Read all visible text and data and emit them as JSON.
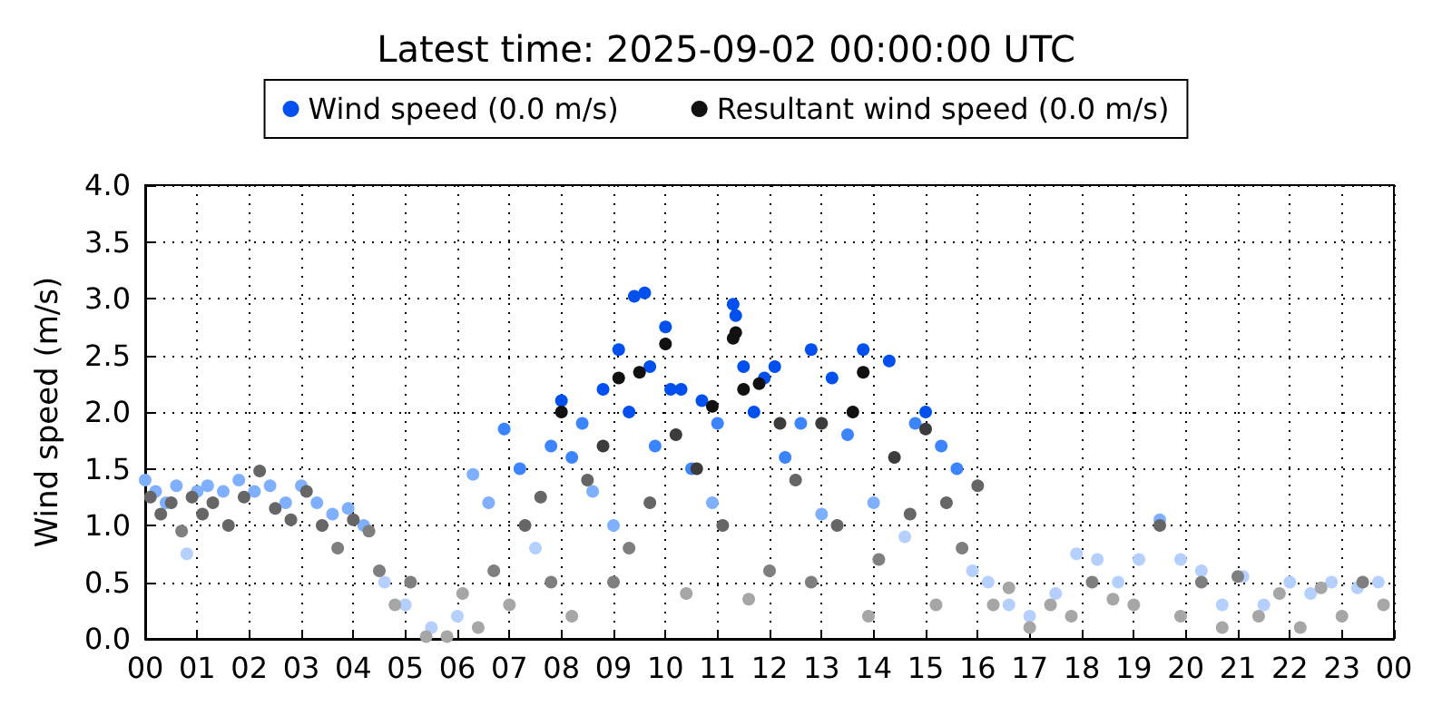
{
  "chart_data": {
    "type": "scatter",
    "title": "Latest time: 2025-09-02 00:00:00 UTC",
    "ylabel": "Wind speed (m/s)",
    "xlim": [
      0,
      24
    ],
    "xticks": [
      {
        "value": 0,
        "label": "00"
      },
      {
        "value": 1,
        "label": "01"
      },
      {
        "value": 2,
        "label": "02"
      },
      {
        "value": 3,
        "label": "03"
      },
      {
        "value": 4,
        "label": "04"
      },
      {
        "value": 5,
        "label": "05"
      },
      {
        "value": 6,
        "label": "06"
      },
      {
        "value": 7,
        "label": "07"
      },
      {
        "value": 8,
        "label": "08"
      },
      {
        "value": 9,
        "label": "09"
      },
      {
        "value": 10,
        "label": "10"
      },
      {
        "value": 11,
        "label": "11"
      },
      {
        "value": 12,
        "label": "12"
      },
      {
        "value": 13,
        "label": "13"
      },
      {
        "value": 14,
        "label": "14"
      },
      {
        "value": 15,
        "label": "15"
      },
      {
        "value": 16,
        "label": "16"
      },
      {
        "value": 17,
        "label": "17"
      },
      {
        "value": 18,
        "label": "18"
      },
      {
        "value": 19,
        "label": "19"
      },
      {
        "value": 20,
        "label": "20"
      },
      {
        "value": 21,
        "label": "21"
      },
      {
        "value": 22,
        "label": "22"
      },
      {
        "value": 23,
        "label": "23"
      },
      {
        "value": 24,
        "label": "00"
      }
    ],
    "ylim": [
      0,
      4
    ],
    "yticks": [
      {
        "value": 0,
        "label": "0.0"
      },
      {
        "value": 0.5,
        "label": "0.5"
      },
      {
        "value": 1,
        "label": "1.0"
      },
      {
        "value": 1.5,
        "label": "1.5"
      },
      {
        "value": 2,
        "label": "2.0"
      },
      {
        "value": 2.5,
        "label": "2.5"
      },
      {
        "value": 3,
        "label": "3.0"
      },
      {
        "value": 3.5,
        "label": "3.5"
      },
      {
        "value": 4,
        "label": "4.0"
      }
    ],
    "grid": true,
    "legend": "top",
    "marker": "circle",
    "series": [
      {
        "name": "Wind speed (0.0 m/s)",
        "color": "#0050f0",
        "x": [
          0.0,
          0.2,
          0.4,
          0.6,
          0.8,
          1.0,
          1.2,
          1.5,
          1.8,
          2.1,
          2.4,
          2.7,
          3.0,
          3.3,
          3.6,
          3.9,
          4.2,
          4.6,
          5.0,
          5.5,
          6.0,
          6.3,
          6.6,
          6.9,
          7.2,
          7.5,
          7.8,
          8.0,
          8.2,
          8.4,
          8.6,
          8.8,
          9.0,
          9.1,
          9.3,
          9.4,
          9.6,
          9.7,
          9.8,
          10.0,
          10.1,
          10.3,
          10.5,
          10.7,
          10.9,
          11.0,
          11.3,
          11.35,
          11.5,
          11.7,
          11.9,
          12.1,
          12.3,
          12.6,
          12.8,
          13.0,
          13.2,
          13.5,
          13.8,
          14.0,
          14.3,
          14.6,
          14.8,
          15.0,
          15.3,
          15.6,
          15.9,
          16.2,
          16.6,
          17.0,
          17.5,
          17.9,
          18.3,
          18.7,
          19.1,
          19.5,
          19.9,
          20.3,
          20.7,
          21.1,
          21.5,
          22.0,
          22.4,
          22.8,
          23.3,
          23.7
        ],
        "values": [
          1.4,
          1.3,
          1.2,
          1.35,
          0.75,
          1.3,
          1.35,
          1.3,
          1.4,
          1.3,
          1.35,
          1.2,
          1.35,
          1.2,
          1.1,
          1.15,
          1.0,
          0.5,
          0.3,
          0.1,
          0.2,
          1.45,
          1.2,
          1.85,
          1.5,
          0.8,
          1.7,
          2.1,
          1.6,
          1.9,
          1.3,
          2.2,
          1.0,
          2.55,
          2.0,
          3.02,
          3.05,
          2.4,
          1.7,
          2.75,
          2.2,
          2.2,
          1.5,
          2.1,
          1.2,
          1.9,
          2.95,
          2.85,
          2.4,
          2.0,
          2.3,
          2.4,
          1.6,
          1.9,
          2.55,
          1.1,
          2.3,
          1.8,
          2.55,
          1.2,
          2.45,
          0.9,
          1.9,
          2.0,
          1.7,
          1.5,
          0.6,
          0.5,
          0.3,
          0.2,
          0.4,
          0.75,
          0.7,
          0.5,
          0.7,
          1.05,
          0.7,
          0.6,
          0.3,
          0.55,
          0.3,
          0.5,
          0.4,
          0.5,
          0.45,
          0.5
        ],
        "colors": [
          "#7fb0ff",
          "#7fb0ff",
          "#7fb0ff",
          "#7fb0ff",
          "#b5d0ff",
          "#7fb0ff",
          "#7fb0ff",
          "#7fb0ff",
          "#7fb0ff",
          "#7fb0ff",
          "#7fb0ff",
          "#7fb0ff",
          "#7fb0ff",
          "#7fb0ff",
          "#7fb0ff",
          "#7fb0ff",
          "#7fb0ff",
          "#b5d0ff",
          "#b5d0ff",
          "#b5d0ff",
          "#b5d0ff",
          "#7fb0ff",
          "#7fb0ff",
          "#3d85ff",
          "#3d85ff",
          "#b5d0ff",
          "#3d85ff",
          "#0050f0",
          "#3d85ff",
          "#3d85ff",
          "#7fb0ff",
          "#0050f0",
          "#7fb0ff",
          "#0050f0",
          "#0050f0",
          "#0050f0",
          "#0050f0",
          "#0050f0",
          "#3d85ff",
          "#0050f0",
          "#0050f0",
          "#0050f0",
          "#3d85ff",
          "#0050f0",
          "#7fb0ff",
          "#3d85ff",
          "#0050f0",
          "#0050f0",
          "#0050f0",
          "#0050f0",
          "#0050f0",
          "#0050f0",
          "#3d85ff",
          "#3d85ff",
          "#0050f0",
          "#7fb0ff",
          "#0050f0",
          "#3d85ff",
          "#0050f0",
          "#7fb0ff",
          "#0050f0",
          "#b5d0ff",
          "#3d85ff",
          "#0050f0",
          "#3d85ff",
          "#3d85ff",
          "#b5d0ff",
          "#b5d0ff",
          "#b5d0ff",
          "#b5d0ff",
          "#b5d0ff",
          "#b5d0ff",
          "#b5d0ff",
          "#b5d0ff",
          "#b5d0ff",
          "#7fb0ff",
          "#b5d0ff",
          "#b5d0ff",
          "#b5d0ff",
          "#b5d0ff",
          "#b5d0ff",
          "#b5d0ff",
          "#b5d0ff",
          "#b5d0ff",
          "#b5d0ff",
          "#b5d0ff"
        ]
      },
      {
        "name": "Resultant wind speed (0.0 m/s)",
        "color": "#111111",
        "x": [
          0.1,
          0.3,
          0.5,
          0.7,
          0.9,
          1.1,
          1.3,
          1.6,
          1.9,
          2.2,
          2.5,
          2.8,
          3.1,
          3.4,
          3.7,
          4.0,
          4.3,
          4.5,
          4.8,
          5.1,
          5.4,
          5.8,
          6.1,
          6.4,
          6.7,
          7.0,
          7.3,
          7.6,
          7.8,
          8.0,
          8.2,
          8.5,
          8.8,
          9.0,
          9.1,
          9.3,
          9.5,
          9.7,
          10.0,
          10.2,
          10.4,
          10.6,
          10.9,
          11.1,
          11.3,
          11.35,
          11.5,
          11.6,
          11.8,
          12.0,
          12.2,
          12.5,
          12.8,
          13.0,
          13.3,
          13.6,
          13.8,
          13.9,
          14.1,
          14.4,
          14.7,
          15.0,
          15.2,
          15.4,
          15.7,
          16.0,
          16.3,
          16.6,
          17.0,
          17.4,
          17.8,
          18.2,
          18.6,
          19.0,
          19.5,
          19.9,
          20.3,
          20.7,
          21.0,
          21.4,
          21.8,
          22.2,
          22.6,
          23.0,
          23.4,
          23.8
        ],
        "values": [
          1.25,
          1.1,
          1.2,
          0.95,
          1.25,
          1.1,
          1.2,
          1.0,
          1.25,
          1.48,
          1.15,
          1.05,
          1.3,
          1.0,
          0.8,
          1.05,
          0.95,
          0.6,
          0.3,
          0.5,
          0.02,
          0.02,
          0.4,
          0.1,
          0.6,
          0.3,
          1.0,
          1.25,
          0.5,
          2.0,
          0.2,
          1.4,
          1.7,
          0.5,
          2.3,
          0.8,
          2.35,
          1.2,
          2.6,
          1.8,
          0.4,
          1.5,
          2.05,
          1.0,
          2.65,
          2.7,
          2.2,
          0.35,
          2.25,
          0.6,
          1.9,
          1.4,
          0.5,
          1.9,
          1.0,
          2.0,
          2.35,
          0.2,
          0.7,
          1.6,
          1.1,
          1.85,
          0.3,
          1.2,
          0.8,
          1.35,
          0.3,
          0.45,
          0.1,
          0.3,
          0.2,
          0.5,
          0.35,
          0.3,
          1.0,
          0.2,
          0.5,
          0.1,
          0.55,
          0.2,
          0.4,
          0.1,
          0.45,
          0.2,
          0.5,
          0.3
        ],
        "colors": [
          "#666666",
          "#666666",
          "#666666",
          "#7f7f7f",
          "#666666",
          "#666666",
          "#666666",
          "#666666",
          "#666666",
          "#666666",
          "#666666",
          "#666666",
          "#666666",
          "#666666",
          "#7f7f7f",
          "#666666",
          "#7f7f7f",
          "#7f7f7f",
          "#a6a6a6",
          "#7f7f7f",
          "#a6a6a6",
          "#a6a6a6",
          "#a6a6a6",
          "#a6a6a6",
          "#7f7f7f",
          "#a6a6a6",
          "#666666",
          "#666666",
          "#7f7f7f",
          "#111111",
          "#a6a6a6",
          "#666666",
          "#3c3c3c",
          "#7f7f7f",
          "#111111",
          "#7f7f7f",
          "#111111",
          "#666666",
          "#111111",
          "#3c3c3c",
          "#a6a6a6",
          "#3c3c3c",
          "#111111",
          "#666666",
          "#111111",
          "#111111",
          "#111111",
          "#a6a6a6",
          "#111111",
          "#7f7f7f",
          "#3c3c3c",
          "#666666",
          "#7f7f7f",
          "#3c3c3c",
          "#666666",
          "#111111",
          "#111111",
          "#a6a6a6",
          "#7f7f7f",
          "#3c3c3c",
          "#666666",
          "#3c3c3c",
          "#a6a6a6",
          "#666666",
          "#7f7f7f",
          "#666666",
          "#a6a6a6",
          "#a6a6a6",
          "#a6a6a6",
          "#a6a6a6",
          "#a6a6a6",
          "#7f7f7f",
          "#a6a6a6",
          "#a6a6a6",
          "#666666",
          "#a6a6a6",
          "#7f7f7f",
          "#a6a6a6",
          "#7f7f7f",
          "#a6a6a6",
          "#a6a6a6",
          "#a6a6a6",
          "#a6a6a6",
          "#a6a6a6",
          "#7f7f7f",
          "#a6a6a6"
        ]
      }
    ]
  }
}
